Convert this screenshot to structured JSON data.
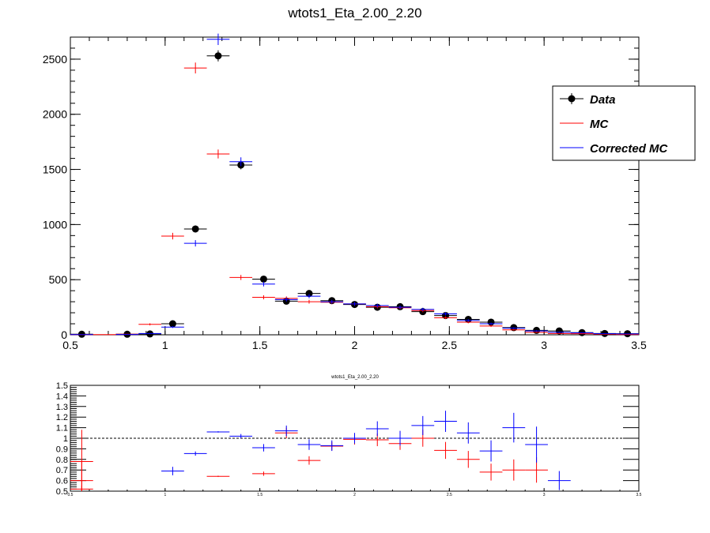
{
  "colors": {
    "data": "#000000",
    "mc": "#ff0000",
    "corrected_mc": "#0000ff"
  },
  "chart_data": [
    {
      "type": "scatter",
      "title": "wtots1_Eta_2.00_2.20",
      "xlim": [
        0.5,
        3.5
      ],
      "ylim": [
        0,
        2700
      ],
      "x_ticks": [
        "0.5",
        "1",
        "1.5",
        "2",
        "2.5",
        "3",
        "3.5"
      ],
      "y_ticks": [
        "0",
        "500",
        "1000",
        "1500",
        "2000",
        "2500"
      ],
      "grid": false,
      "legend_position": "top-right",
      "bin_halfwidth": 0.06,
      "series": [
        {
          "name": "Data",
          "style": "marker",
          "points": [
            [
              0.56,
              5
            ],
            [
              0.8,
              5
            ],
            [
              0.92,
              8
            ],
            [
              1.04,
              100
            ],
            [
              1.16,
              960
            ],
            [
              1.28,
              2530
            ],
            [
              1.4,
              1540
            ],
            [
              1.52,
              505
            ],
            [
              1.64,
              305
            ],
            [
              1.76,
              375
            ],
            [
              1.88,
              310
            ],
            [
              2.0,
              275
            ],
            [
              2.12,
              250
            ],
            [
              2.24,
              255
            ],
            [
              2.36,
              210
            ],
            [
              2.48,
              175
            ],
            [
              2.6,
              140
            ],
            [
              2.72,
              115
            ],
            [
              2.84,
              65
            ],
            [
              2.96,
              40
            ],
            [
              3.08,
              35
            ],
            [
              3.2,
              20
            ],
            [
              3.32,
              12
            ],
            [
              3.44,
              10
            ]
          ]
        },
        {
          "name": "MC",
          "style": "cross",
          "points": [
            [
              0.56,
              2
            ],
            [
              0.68,
              2
            ],
            [
              0.8,
              5
            ],
            [
              0.92,
              95
            ],
            [
              1.04,
              895
            ],
            [
              1.16,
              2420
            ],
            [
              1.28,
              1640
            ],
            [
              1.4,
              520
            ],
            [
              1.52,
              340
            ],
            [
              1.64,
              330
            ],
            [
              1.76,
              300
            ],
            [
              1.88,
              295
            ],
            [
              2.0,
              280
            ],
            [
              2.12,
              255
            ],
            [
              2.24,
              245
            ],
            [
              2.36,
              220
            ],
            [
              2.48,
              155
            ],
            [
              2.6,
              115
            ],
            [
              2.72,
              80
            ],
            [
              2.84,
              45
            ],
            [
              2.96,
              22
            ],
            [
              3.08,
              12
            ],
            [
              3.2,
              10
            ],
            [
              3.32,
              5
            ],
            [
              3.44,
              3
            ]
          ]
        },
        {
          "name": "Corrected MC",
          "style": "cross",
          "points": [
            [
              0.56,
              2
            ],
            [
              0.8,
              3
            ],
            [
              0.92,
              12
            ],
            [
              1.04,
              70
            ],
            [
              1.16,
              830
            ],
            [
              1.28,
              2680
            ],
            [
              1.4,
              1570
            ],
            [
              1.52,
              460
            ],
            [
              1.64,
              320
            ],
            [
              1.76,
              350
            ],
            [
              1.88,
              300
            ],
            [
              2.0,
              280
            ],
            [
              2.12,
              265
            ],
            [
              2.24,
              250
            ],
            [
              2.36,
              230
            ],
            [
              2.48,
              190
            ],
            [
              2.6,
              130
            ],
            [
              2.72,
              100
            ],
            [
              2.84,
              60
            ],
            [
              2.96,
              35
            ],
            [
              3.08,
              22
            ],
            [
              3.2,
              18
            ],
            [
              3.32,
              10
            ],
            [
              3.44,
              8
            ]
          ]
        }
      ]
    },
    {
      "type": "scatter",
      "title": "wtots1_Eta_2.00_2.20",
      "xlim": [
        0.5,
        3.5
      ],
      "ylim": [
        0.5,
        1.5
      ],
      "x_ticks": [
        "0.5",
        "1",
        "1.5",
        "2",
        "2.5",
        "3",
        "3.5"
      ],
      "y_ticks": [
        "0.5",
        "0.6",
        "0.7",
        "0.8",
        "0.9",
        "1",
        "1.1",
        "1.2",
        "1.3",
        "1.4",
        "1.5"
      ],
      "reference_line": 1,
      "bin_halfwidth": 0.06,
      "series": [
        {
          "name": "MC",
          "points": [
            [
              0.56,
              0.52,
              0.03
            ],
            [
              0.56,
              0.6,
              0.18
            ],
            [
              0.56,
              0.78,
              0.3
            ],
            [
              1.28,
              0.64,
              0.006
            ],
            [
              1.52,
              0.665,
              0.02
            ],
            [
              1.64,
              1.05,
              0.05
            ],
            [
              1.76,
              0.79,
              0.04
            ],
            [
              1.88,
              0.925,
              0.04
            ],
            [
              2.0,
              0.99,
              0.05
            ],
            [
              2.12,
              0.985,
              0.06
            ],
            [
              2.24,
              0.95,
              0.06
            ],
            [
              2.36,
              1.0,
              0.08
            ],
            [
              2.48,
              0.885,
              0.08
            ],
            [
              2.6,
              0.8,
              0.08
            ],
            [
              2.72,
              0.68,
              0.08
            ],
            [
              2.84,
              0.7,
              0.1
            ],
            [
              2.96,
              0.7,
              0.12
            ]
          ]
        },
        {
          "name": "Corrected MC",
          "points": [
            [
              1.04,
              0.69,
              0.04
            ],
            [
              1.16,
              0.855,
              0.02
            ],
            [
              1.28,
              1.06,
              0.006
            ],
            [
              1.4,
              1.02,
              0.02
            ],
            [
              1.52,
              0.91,
              0.035
            ],
            [
              1.64,
              1.07,
              0.05
            ],
            [
              1.76,
              0.94,
              0.05
            ],
            [
              1.88,
              0.93,
              0.05
            ],
            [
              2.0,
              1.0,
              0.05
            ],
            [
              2.12,
              1.09,
              0.07
            ],
            [
              2.24,
              1.0,
              0.07
            ],
            [
              2.36,
              1.12,
              0.09
            ],
            [
              2.48,
              1.16,
              0.1
            ],
            [
              2.6,
              1.05,
              0.1
            ],
            [
              2.72,
              0.88,
              0.1
            ],
            [
              2.84,
              1.1,
              0.14
            ],
            [
              2.96,
              0.94,
              0.17
            ],
            [
              3.08,
              0.6,
              0.09
            ]
          ]
        }
      ]
    }
  ]
}
